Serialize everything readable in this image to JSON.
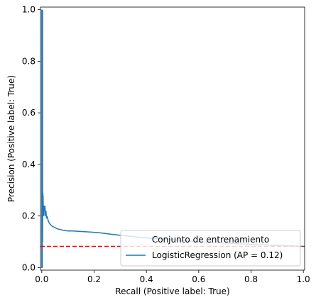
{
  "chart_data": {
    "type": "line",
    "xlabel": "Recall (Positive label: True)",
    "ylabel": "Precision (Positive label: True)",
    "xlim": [
      -0.005,
      1.005
    ],
    "ylim": [
      -0.01,
      1.01
    ],
    "xticks": [
      0.0,
      0.2,
      0.4,
      0.6,
      0.8,
      1.0
    ],
    "yticks": [
      0.0,
      0.2,
      0.4,
      0.6,
      0.8,
      1.0
    ],
    "xtick_labels": [
      "0.0",
      "0.2",
      "0.4",
      "0.6",
      "0.8",
      "1.0"
    ],
    "ytick_labels": [
      "0.0",
      "0.2",
      "0.4",
      "0.6",
      "0.8",
      "1.0"
    ],
    "grid": false,
    "legend": {
      "title": "Conjunto de entrenamiento",
      "placement": "lower-right"
    },
    "series": [
      {
        "name": "LogisticRegression (AP = 0.12)",
        "color": "#1f77b4",
        "style": "solid",
        "x": [
          0.0,
          0.0,
          0.002,
          0.003,
          0.003,
          0.004,
          0.004,
          0.005,
          0.006,
          0.007,
          0.008,
          0.009,
          0.01,
          0.012,
          0.014,
          0.016,
          0.018,
          0.02,
          0.025,
          0.03,
          0.04,
          0.05,
          0.06,
          0.08,
          0.1,
          0.12,
          0.15,
          0.18,
          0.22,
          0.26,
          0.3,
          0.35,
          0.4,
          0.5,
          0.6,
          0.7,
          0.8,
          0.9,
          1.0
        ],
        "y": [
          1.0,
          0.0,
          0.0,
          1.0,
          0.1,
          0.29,
          0.2,
          0.28,
          0.21,
          0.23,
          0.2,
          0.24,
          0.22,
          0.24,
          0.2,
          0.22,
          0.19,
          0.2,
          0.18,
          0.17,
          0.16,
          0.155,
          0.15,
          0.145,
          0.142,
          0.142,
          0.14,
          0.138,
          0.135,
          0.13,
          0.125,
          0.12,
          0.115,
          0.108,
          0.1,
          0.095,
          0.09,
          0.086,
          0.082
        ]
      },
      {
        "name": "",
        "color": "#ff0000",
        "style": "dashed",
        "x": [
          -0.005,
          1.005
        ],
        "y": [
          0.082,
          0.082
        ]
      }
    ]
  }
}
